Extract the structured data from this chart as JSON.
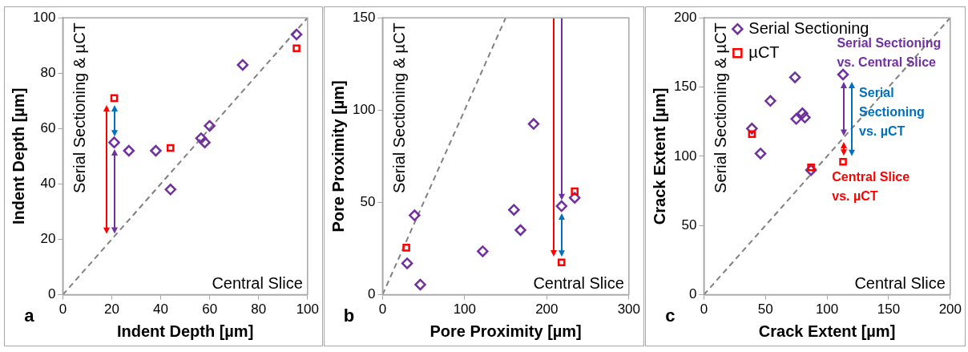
{
  "chart_data": [
    {
      "type": "scatter",
      "xlabel": "Indent Depth [µm]",
      "ylabel": "Indent Depth [µm]",
      "xlim": [
        0,
        100
      ],
      "ylim": [
        0,
        100
      ],
      "xticks": [
        0,
        20,
        40,
        60,
        80,
        100
      ],
      "yticks": [
        0,
        20,
        40,
        60,
        80,
        100
      ],
      "annotations": [
        "Serial Sectioning & µCT",
        "Central Slice",
        "a"
      ],
      "series": [
        {
          "marker": "diamond",
          "color": "#7030a0",
          "x": [
            21,
            27,
            38,
            44,
            56.5,
            58,
            60,
            73.5,
            95.5
          ],
          "values": [
            55,
            52,
            52,
            38,
            56.5,
            55,
            61,
            83,
            94
          ]
        },
        {
          "marker": "square",
          "color": "#ff0000",
          "x": [
            21,
            44,
            95.5
          ],
          "values": [
            71,
            53,
            89
          ]
        },
        {
          "type": "line",
          "line_style": "dashed",
          "color": "#808080",
          "x": [
            0,
            100
          ],
          "values": [
            0,
            100
          ]
        }
      ]
    },
    {
      "type": "scatter",
      "xlabel": "Pore Proximity [µm]",
      "ylabel": "Pore Proximity [µm]",
      "xlim": [
        0,
        300
      ],
      "ylim": [
        0,
        150
      ],
      "xticks": [
        0,
        100,
        200,
        300
      ],
      "yticks": [
        0,
        50,
        100,
        150
      ],
      "annotations": [
        "Serial Sectioning & µCT",
        "Central Slice",
        "b"
      ],
      "series": [
        {
          "marker": "diamond",
          "color": "#7030a0",
          "x": [
            30,
            39,
            46,
            122,
            160,
            168,
            184,
            218,
            234
          ],
          "values": [
            17,
            43,
            5.5,
            23.5,
            46,
            35,
            92.5,
            48,
            52.5
          ]
        },
        {
          "marker": "square",
          "color": "#ff0000",
          "x": [
            29,
            218,
            234
          ],
          "values": [
            25.5,
            17.5,
            56
          ]
        },
        {
          "type": "line",
          "line_style": "dashed",
          "color": "#808080",
          "x": [
            0,
            150
          ],
          "values": [
            0,
            150
          ]
        }
      ]
    },
    {
      "type": "scatter",
      "xlabel": "Crack Extent [µm]",
      "ylabel": "Crack Extent [µm]",
      "xlim": [
        0,
        200
      ],
      "ylim": [
        0,
        200
      ],
      "xticks": [
        0,
        50,
        100,
        150,
        200
      ],
      "yticks": [
        0,
        50,
        100,
        150,
        200
      ],
      "legend": "top left",
      "annotations": [
        "Serial Sectioning & µCT",
        "Central Slice",
        "c",
        "Serial Sectioning vs. Central Slice",
        "Serial Sectioning vs. µCT",
        "Central Slice vs. µCT"
      ],
      "series": [
        {
          "name": "Serial Sectioning",
          "marker": "diamond",
          "color": "#7030a0",
          "x": [
            39,
            46,
            54,
            74,
            75,
            80,
            82,
            87,
            113
          ],
          "values": [
            120,
            102,
            140,
            157,
            127,
            131,
            128,
            90,
            159
          ]
        },
        {
          "name": "µCT",
          "marker": "square",
          "color": "#ff0000",
          "x": [
            39,
            87,
            113
          ],
          "values": [
            116,
            92,
            96
          ]
        },
        {
          "type": "line",
          "line_style": "dashed",
          "color": "#808080",
          "x": [
            0,
            200
          ],
          "values": [
            0,
            200
          ]
        }
      ]
    }
  ]
}
